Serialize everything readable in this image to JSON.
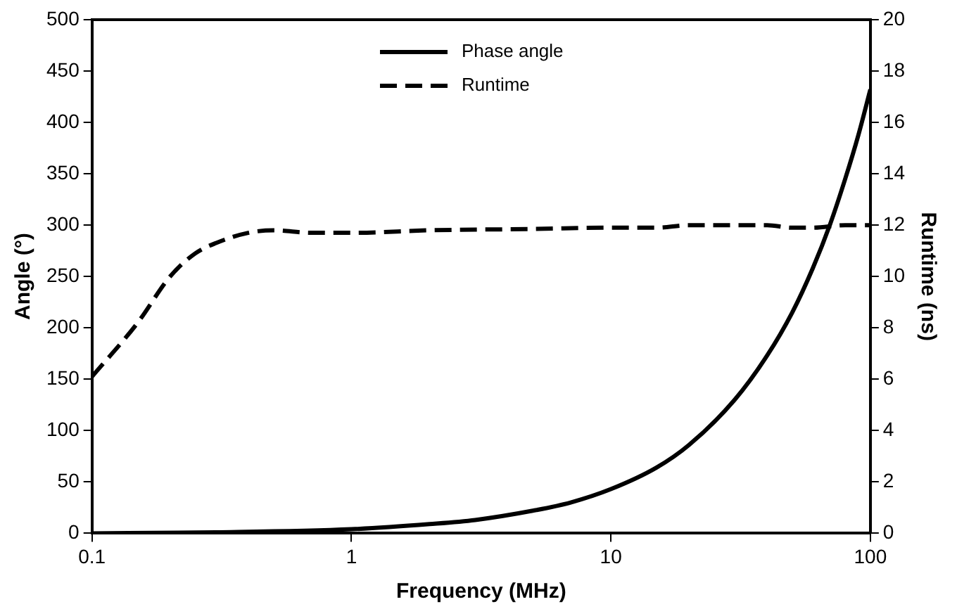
{
  "chart_data": {
    "type": "line",
    "xlabel": "Frequency (MHz)",
    "ylabel": "Angle (°)",
    "y2label": "Runtime (ns)",
    "log": "x",
    "grid": false,
    "legend": "top",
    "marker": "none",
    "xlim": [
      0.1,
      100
    ],
    "xticks": [
      0.1,
      1,
      10,
      100
    ],
    "ylim": [
      0,
      500
    ],
    "yticks": [
      0,
      50,
      100,
      150,
      200,
      250,
      300,
      350,
      400,
      450,
      500
    ],
    "y2lim": [
      0,
      20
    ],
    "y2ticks": [
      0,
      2,
      4,
      6,
      8,
      10,
      12,
      14,
      16,
      18,
      20
    ],
    "series": [
      {
        "name": "Phase angle",
        "color": "#000000",
        "line_style": "solid",
        "x": [
          0.1,
          0.3,
          1,
          2,
          3,
          5,
          7,
          10,
          15,
          20,
          30,
          40,
          50,
          60,
          70,
          80,
          90,
          100
        ],
        "values": [
          0,
          1,
          4,
          9,
          13,
          22,
          30,
          43,
          64,
          86,
          130,
          173,
          215,
          258,
          301,
          345,
          388,
          432
        ]
      },
      {
        "name": "Runtime",
        "color": "#000000",
        "line_style": "dashed",
        "axis": "y2",
        "x": [
          0.1,
          0.15,
          0.2,
          0.25,
          0.3,
          0.4,
          0.5,
          0.7,
          1,
          2,
          5,
          10,
          15,
          20,
          30,
          40,
          50,
          60,
          80,
          100
        ],
        "values": [
          6.1,
          8.2,
          10.0,
          10.9,
          11.3,
          11.7,
          11.8,
          11.7,
          11.7,
          11.8,
          11.85,
          11.9,
          11.9,
          12.0,
          12.0,
          12.0,
          11.9,
          11.9,
          12.0,
          12.0
        ]
      }
    ]
  }
}
